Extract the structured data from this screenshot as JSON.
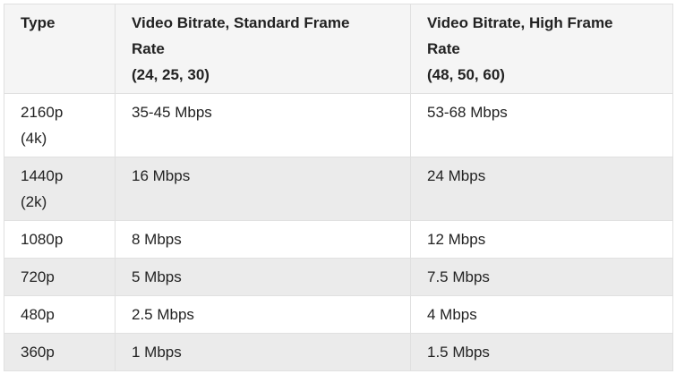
{
  "table": {
    "headers": [
      [
        "Type"
      ],
      [
        "Video Bitrate, Standard Frame",
        "Rate",
        "(24, 25, 30)"
      ],
      [
        "Video Bitrate, High Frame",
        "Rate",
        "(48, 50, 60)"
      ]
    ],
    "rows": [
      {
        "type": [
          "2160p",
          "(4k)"
        ],
        "standard": "35-45 Mbps",
        "high": "53-68 Mbps",
        "shaded": false
      },
      {
        "type": [
          "1440p",
          "(2k)"
        ],
        "standard": "16 Mbps",
        "high": "24 Mbps",
        "shaded": true
      },
      {
        "type": [
          "1080p"
        ],
        "standard": "8 Mbps",
        "high": "12 Mbps",
        "shaded": false
      },
      {
        "type": [
          "720p"
        ],
        "standard": "5 Mbps",
        "high": "7.5 Mbps",
        "shaded": true
      },
      {
        "type": [
          "480p"
        ],
        "standard": "2.5 Mbps",
        "high": "4 Mbps",
        "shaded": false
      },
      {
        "type": [
          "360p"
        ],
        "standard": "1 Mbps",
        "high": "1.5 Mbps",
        "shaded": true
      }
    ]
  },
  "colors": {
    "header_bg": "#f5f5f5",
    "shaded_row_bg": "#ebebeb",
    "border": "#e0e0e0",
    "text": "#222222"
  }
}
